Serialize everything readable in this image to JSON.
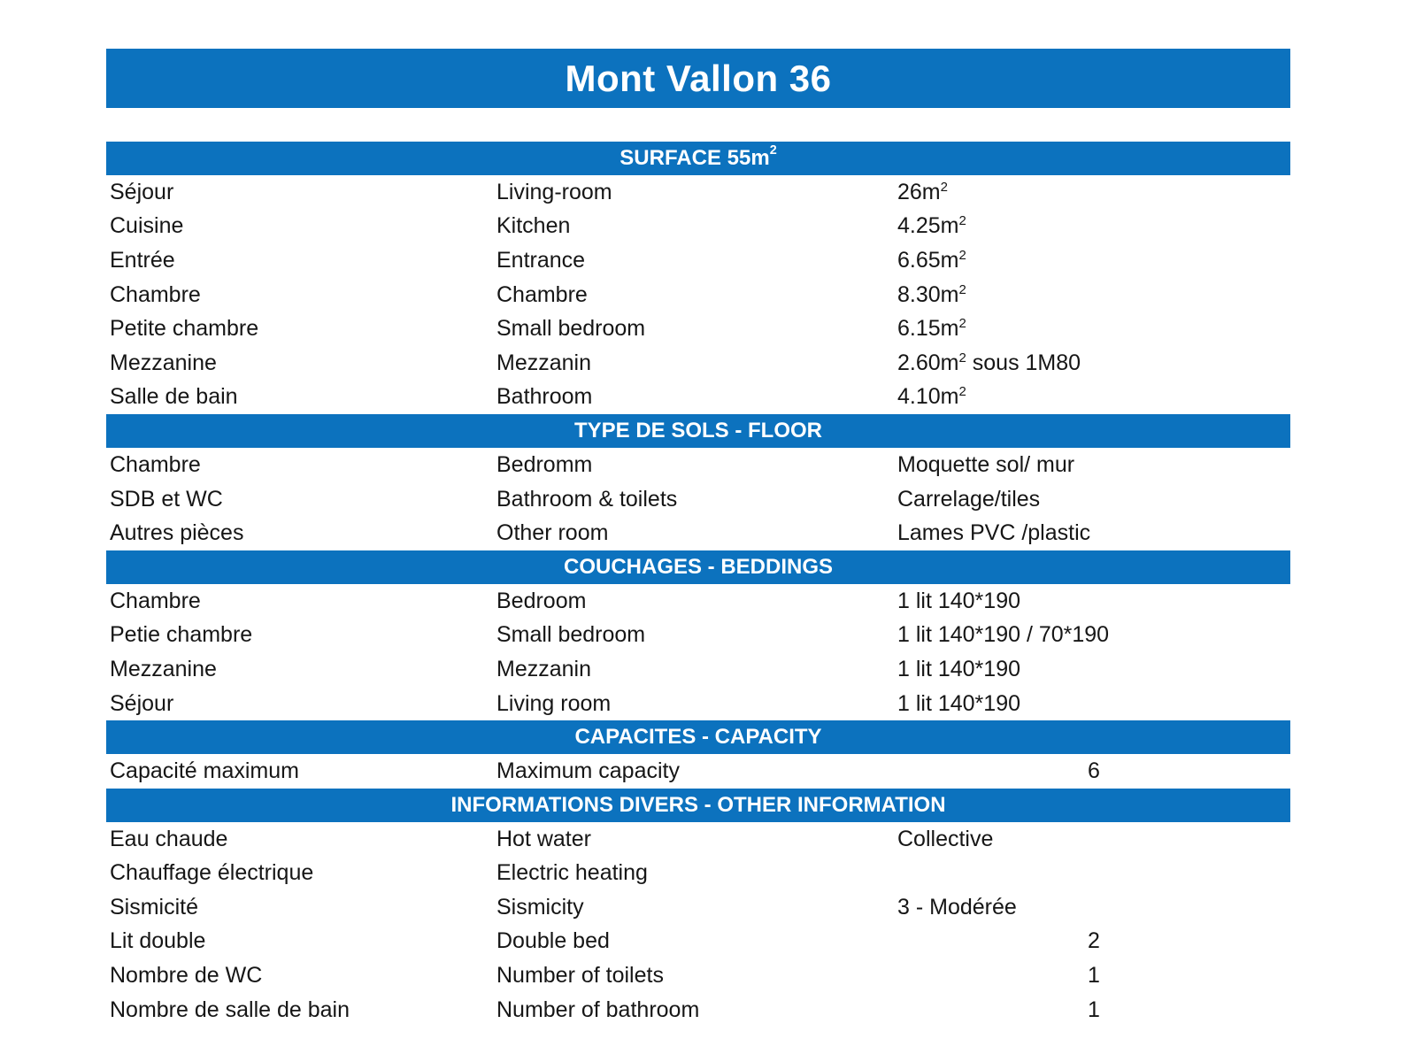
{
  "page": {
    "title": "Mont Vallon 36"
  },
  "colors": {
    "bar_blue": "#0c72be",
    "bar_text": "#ffffff",
    "body_text": "#161616",
    "background": "#ffffff"
  },
  "table": {
    "sections": [
      {
        "header": "SURFACE 55m²",
        "rows": [
          {
            "fr": "Séjour",
            "en": "Living-room",
            "value": "26m²"
          },
          {
            "fr": "Cuisine",
            "en": "Kitchen",
            "value": "4.25m²"
          },
          {
            "fr": "Entrée",
            "en": "Entrance",
            "value": "6.65m²"
          },
          {
            "fr": "Chambre",
            "en": "Chambre",
            "value": "8.30m²"
          },
          {
            "fr": "Petite chambre",
            "en": "Small bedroom",
            "value": "6.15m²"
          },
          {
            "fr": "Mezzanine",
            "en": "Mezzanin",
            "value": "2.60m² sous 1M80"
          },
          {
            "fr": "Salle de bain",
            "en": "Bathroom",
            "value": "4.10m²"
          }
        ]
      },
      {
        "header": "TYPE DE SOLS - FLOOR",
        "rows": [
          {
            "fr": "Chambre",
            "en": "Bedromm",
            "value": "Moquette sol/ mur"
          },
          {
            "fr": "SDB et WC",
            "en": "Bathroom & toilets",
            "value": "Carrelage/tiles"
          },
          {
            "fr": "Autres pièces",
            "en": "Other room",
            "value": "Lames PVC /plastic"
          }
        ]
      },
      {
        "header": "COUCHAGES - BEDDINGS",
        "rows": [
          {
            "fr": "Chambre",
            "en": "Bedroom",
            "value": "1 lit 140*190"
          },
          {
            "fr": "Petie chambre",
            "en": "Small bedroom",
            "value": "1 lit 140*190 / 70*190"
          },
          {
            "fr": "Mezzanine",
            "en": "Mezzanin",
            "value": "1 lit 140*190"
          },
          {
            "fr": "Séjour",
            "en": "Living room",
            "value": "1 lit 140*190"
          }
        ]
      },
      {
        "header": "CAPACITES - CAPACITY",
        "rows": [
          {
            "fr": "Capacité maximum",
            "en": "Maximum capacity",
            "value": "6"
          }
        ]
      },
      {
        "header": "INFORMATIONS DIVERS - OTHER INFORMATION",
        "rows": [
          {
            "fr": "Eau chaude",
            "en": "Hot water",
            "value": "Collective"
          },
          {
            "fr": "Chauffage électrique",
            "en": "Electric heating",
            "value": ""
          },
          {
            "fr": "Sismicité",
            "en": "Sismicity",
            "value": "3 - Modérée"
          },
          {
            "fr": "Lit double",
            "en": "Double bed",
            "value": "2"
          },
          {
            "fr": "Nombre de WC",
            "en": "Number of toilets",
            "value": "1"
          },
          {
            "fr": "Nombre de salle de bain",
            "en": "Number of bathroom",
            "value": "1"
          }
        ]
      }
    ]
  }
}
